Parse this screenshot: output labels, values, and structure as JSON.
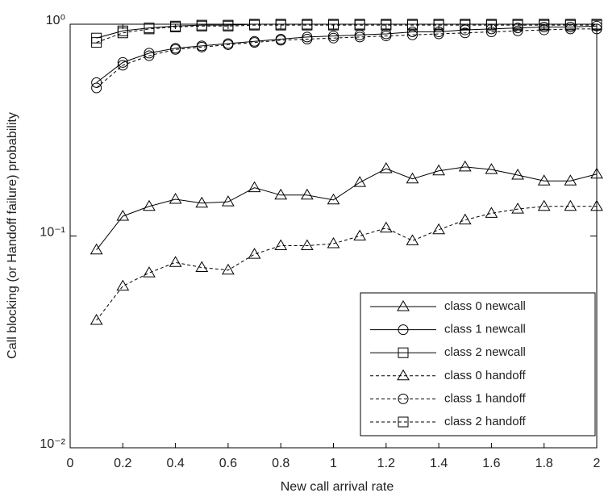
{
  "chart_data": {
    "type": "line",
    "x_label": "New call arrival rate",
    "y_label": "Call blocking (or Handoff failure) probability",
    "yscale": "log",
    "xlim": [
      0,
      2
    ],
    "ylim": [
      0.01,
      1
    ],
    "xticks": [
      0,
      0.2,
      0.4,
      0.6,
      0.8,
      1,
      1.2,
      1.4,
      1.6,
      1.8,
      2
    ],
    "yticks": [
      {
        "value": 0.01,
        "label": "10⁻²"
      },
      {
        "value": 0.1,
        "label": "10⁻¹"
      },
      {
        "value": 1,
        "label": "10⁰"
      }
    ],
    "legend": "lower right",
    "x": [
      0.1,
      0.2,
      0.3,
      0.4,
      0.5,
      0.6,
      0.7,
      0.8,
      0.9,
      1.0,
      1.1,
      1.2,
      1.3,
      1.4,
      1.5,
      1.6,
      1.7,
      1.8,
      1.9,
      2.0
    ],
    "series": [
      {
        "name": "class 0 newcall",
        "color": "#000000",
        "line_style": "solid",
        "marker": "triangle",
        "values": [
          0.086,
          0.124,
          0.138,
          0.149,
          0.143,
          0.145,
          0.169,
          0.156,
          0.156,
          0.148,
          0.179,
          0.208,
          0.186,
          0.203,
          0.212,
          0.206,
          0.194,
          0.182,
          0.182,
          0.196
        ]
      },
      {
        "name": "class 1 newcall",
        "color": "#000000",
        "line_style": "solid",
        "marker": "circle",
        "values": [
          0.53,
          0.66,
          0.73,
          0.77,
          0.79,
          0.81,
          0.83,
          0.85,
          0.87,
          0.88,
          0.89,
          0.9,
          0.92,
          0.92,
          0.94,
          0.95,
          0.96,
          0.97,
          0.97,
          0.98
        ]
      },
      {
        "name": "class 2 newcall",
        "color": "#000000",
        "line_style": "solid",
        "marker": "square",
        "values": [
          0.86,
          0.93,
          0.96,
          0.98,
          0.99,
          0.99,
          1.0,
          1.0,
          1.0,
          1.0,
          1.0,
          1.0,
          1.0,
          1.0,
          1.0,
          1.0,
          1.0,
          1.0,
          1.0,
          1.0
        ]
      },
      {
        "name": "class 0 handoff",
        "color": "#000000",
        "line_style": "dashed",
        "marker": "triangle",
        "values": [
          0.04,
          0.058,
          0.067,
          0.075,
          0.071,
          0.069,
          0.082,
          0.09,
          0.09,
          0.092,
          0.1,
          0.109,
          0.095,
          0.107,
          0.119,
          0.128,
          0.134,
          0.138,
          0.138,
          0.138
        ]
      },
      {
        "name": "class 1 handoff",
        "color": "#000000",
        "line_style": "dashed",
        "marker": "circle",
        "values": [
          0.5,
          0.64,
          0.71,
          0.76,
          0.78,
          0.8,
          0.82,
          0.84,
          0.85,
          0.86,
          0.87,
          0.88,
          0.89,
          0.9,
          0.91,
          0.92,
          0.93,
          0.94,
          0.95,
          0.95
        ]
      },
      {
        "name": "class 2 handoff",
        "color": "#000000",
        "line_style": "dashed",
        "marker": "square",
        "values": [
          0.82,
          0.91,
          0.95,
          0.97,
          0.98,
          0.98,
          0.99,
          0.99,
          0.99,
          0.99,
          0.99,
          0.99,
          0.99,
          0.99,
          0.99,
          0.99,
          0.99,
          0.99,
          0.99,
          0.99
        ]
      }
    ]
  }
}
